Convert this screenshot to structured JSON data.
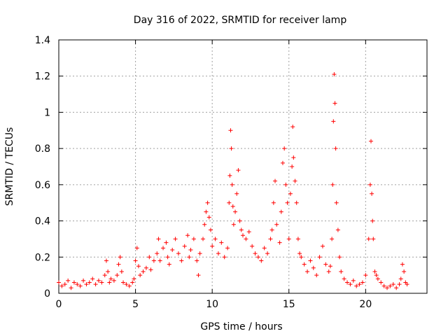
{
  "chart_data": {
    "type": "scatter",
    "title": "Day 316 of 2022, SRMTID for receiver lamp",
    "xlabel": "GPS time / hours",
    "ylabel": "SRMTID / TECUs",
    "xlim": [
      0,
      24
    ],
    "ylim": [
      0,
      1.4
    ],
    "xticks": [
      0,
      5,
      10,
      15,
      20
    ],
    "yticks": [
      0,
      0.2,
      0.4,
      0.6,
      0.8,
      1,
      1.2,
      1.4
    ],
    "xtick_labels": [
      "0",
      "5",
      "10",
      "15",
      "20"
    ],
    "ytick_labels": [
      "0",
      "0.2",
      "0.4",
      "0.6",
      "0.8",
      "1",
      "1.2",
      "1.4"
    ],
    "grid": true,
    "marker": "+",
    "color": "#ff0000",
    "series": [
      {
        "name": "receiver lamp",
        "x": [
          0.0,
          0.2,
          0.4,
          0.6,
          0.8,
          1.0,
          1.2,
          1.4,
          1.6,
          1.8,
          2.0,
          2.2,
          2.4,
          2.6,
          2.8,
          3.0,
          3.1,
          3.2,
          3.3,
          3.4,
          3.6,
          3.8,
          3.9,
          4.0,
          4.1,
          4.2,
          4.4,
          4.6,
          4.8,
          4.9,
          5.0,
          5.1,
          5.2,
          5.3,
          5.5,
          5.7,
          5.9,
          6.0,
          6.2,
          6.4,
          6.5,
          6.6,
          6.8,
          7.0,
          7.1,
          7.2,
          7.4,
          7.6,
          7.8,
          8.0,
          8.2,
          8.4,
          8.5,
          8.6,
          8.8,
          9.0,
          9.1,
          9.2,
          9.4,
          9.5,
          9.6,
          9.7,
          9.8,
          9.9,
          10.0,
          10.2,
          10.4,
          10.6,
          10.8,
          11.0,
          11.1,
          11.15,
          11.2,
          11.25,
          11.3,
          11.35,
          11.4,
          11.5,
          11.6,
          11.7,
          11.8,
          11.9,
          12.0,
          12.2,
          12.4,
          12.6,
          12.8,
          13.0,
          13.2,
          13.4,
          13.6,
          13.8,
          13.9,
          14.0,
          14.1,
          14.2,
          14.4,
          14.5,
          14.6,
          14.7,
          14.8,
          14.9,
          15.0,
          15.1,
          15.2,
          15.25,
          15.3,
          15.4,
          15.5,
          15.6,
          15.7,
          15.8,
          16.0,
          16.2,
          16.4,
          16.6,
          16.8,
          17.0,
          17.2,
          17.4,
          17.6,
          17.7,
          17.8,
          17.85,
          17.9,
          17.95,
          18.0,
          18.05,
          18.1,
          18.2,
          18.3,
          18.4,
          18.6,
          18.8,
          19.0,
          19.2,
          19.4,
          19.6,
          19.8,
          20.0,
          20.2,
          20.3,
          20.35,
          20.4,
          20.45,
          20.5,
          20.6,
          20.7,
          20.8,
          21.0,
          21.2,
          21.4,
          21.6,
          21.8,
          22.0,
          22.2,
          22.3,
          22.4,
          22.5,
          22.6,
          22.7
        ],
        "y": [
          0.06,
          0.04,
          0.05,
          0.07,
          0.03,
          0.06,
          0.05,
          0.04,
          0.07,
          0.05,
          0.06,
          0.08,
          0.05,
          0.07,
          0.06,
          0.1,
          0.18,
          0.12,
          0.06,
          0.08,
          0.07,
          0.1,
          0.16,
          0.2,
          0.12,
          0.06,
          0.05,
          0.04,
          0.06,
          0.08,
          0.18,
          0.25,
          0.15,
          0.1,
          0.12,
          0.14,
          0.2,
          0.13,
          0.18,
          0.22,
          0.3,
          0.18,
          0.25,
          0.28,
          0.2,
          0.16,
          0.24,
          0.3,
          0.22,
          0.18,
          0.26,
          0.32,
          0.2,
          0.24,
          0.3,
          0.18,
          0.1,
          0.22,
          0.3,
          0.38,
          0.45,
          0.5,
          0.42,
          0.35,
          0.26,
          0.3,
          0.22,
          0.28,
          0.2,
          0.25,
          0.5,
          0.65,
          0.9,
          0.8,
          0.6,
          0.48,
          0.38,
          0.45,
          0.55,
          0.68,
          0.4,
          0.35,
          0.32,
          0.3,
          0.34,
          0.26,
          0.22,
          0.2,
          0.18,
          0.25,
          0.22,
          0.3,
          0.35,
          0.5,
          0.62,
          0.38,
          0.28,
          0.45,
          0.72,
          0.8,
          0.6,
          0.5,
          0.3,
          0.55,
          0.7,
          0.92,
          0.75,
          0.62,
          0.5,
          0.3,
          0.22,
          0.2,
          0.16,
          0.12,
          0.18,
          0.14,
          0.1,
          0.2,
          0.26,
          0.16,
          0.12,
          0.15,
          0.3,
          0.6,
          0.95,
          1.21,
          1.05,
          0.8,
          0.5,
          0.35,
          0.2,
          0.12,
          0.08,
          0.06,
          0.05,
          0.07,
          0.04,
          0.05,
          0.06,
          0.1,
          0.3,
          0.6,
          0.84,
          0.55,
          0.4,
          0.3,
          0.12,
          0.1,
          0.08,
          0.06,
          0.04,
          0.03,
          0.04,
          0.05,
          0.03,
          0.05,
          0.08,
          0.16,
          0.12,
          0.06,
          0.05
        ]
      }
    ]
  }
}
